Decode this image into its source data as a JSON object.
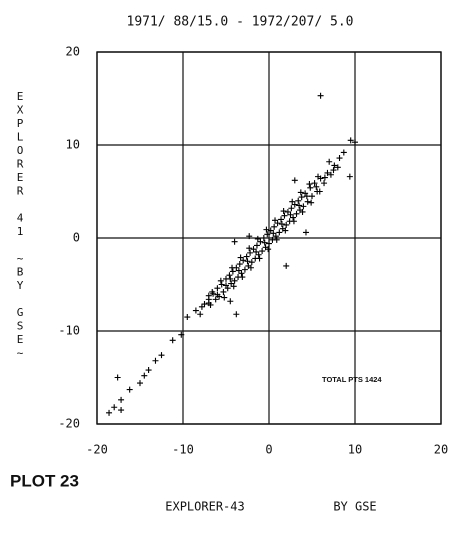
{
  "chart_data": {
    "type": "scatter",
    "title": "1971/ 88/15.0 - 1972/207/ 5.0",
    "ylabel": "EXPLORER 41 ~BY GSE~",
    "xlabel": "EXPLORER-43",
    "xlabel_note": "BY GSE",
    "plot_label": "PLOT 23",
    "annotation": "TOTAL PTS 1424",
    "color": "#000000",
    "grid": true,
    "xlim": [
      -20,
      20
    ],
    "ylim": [
      -20,
      20
    ],
    "xticks": [
      -20,
      -10,
      0,
      10,
      20
    ],
    "yticks": [
      -20,
      -10,
      0,
      10,
      20
    ],
    "x": [
      -8,
      -7.5,
      -7.8,
      -7,
      -6.8,
      -6.5,
      -6.2,
      -6,
      -5.8,
      -5.5,
      -5.3,
      -5,
      -4.8,
      -4.6,
      -4.4,
      -4.2,
      -4,
      -3.8,
      -3.6,
      -3.4,
      -3.2,
      -3,
      -2.8,
      -2.6,
      -2.4,
      -2.2,
      -2,
      -1.8,
      -1.6,
      -1.4,
      -1.2,
      -1,
      -0.8,
      -0.6,
      -0.4,
      -0.2,
      0,
      0.2,
      0.4,
      0.6,
      0.8,
      1,
      1.2,
      1.4,
      1.6,
      1.8,
      2,
      2.2,
      2.4,
      2.6,
      2.8,
      3,
      3.2,
      3.4,
      3.6,
      3.8,
      4,
      4.2,
      4.5,
      4.8,
      5,
      5.3,
      5.6,
      6,
      6.4,
      6.8,
      7.2,
      7.6,
      8,
      -7,
      -6,
      -5,
      -4.5,
      -3.5,
      -2.5,
      -1.5,
      -0.5,
      0.5,
      1.5,
      2.5,
      3.5,
      4.4,
      5.5,
      6.5,
      7.5,
      -6.6,
      -5.6,
      -4.3,
      -3.3,
      -2.3,
      -1.3,
      -0.3,
      0.7,
      1.7,
      2.7,
      3.7,
      4.7,
      5.7,
      -5.2,
      -4.1,
      -3.1,
      -2.1,
      -1.1,
      -0.1,
      0.9,
      1.9,
      2.9,
      3.9,
      4.9,
      5.9,
      6,
      9.5,
      10,
      8.7,
      8.2,
      7,
      -4,
      -2.3,
      -3.8,
      -4.5,
      -7,
      -8.5,
      -9.5,
      -10.2,
      -11.2,
      -12.5,
      -13.2,
      -14,
      -14.5,
      -15,
      -16.2,
      -17.2,
      -17.6,
      -18,
      -18.6,
      -17.2,
      2,
      4.3,
      9.4,
      3
    ],
    "y": [
      -8.2,
      -7.1,
      -7.4,
      -6.6,
      -7.2,
      -6,
      -6.6,
      -5.4,
      -6.3,
      -5,
      -5.8,
      -4.4,
      -5.4,
      -4,
      -4.9,
      -3.6,
      -4.6,
      -3.2,
      -4.2,
      -2.8,
      -3.8,
      -2.4,
      -3.4,
      -2,
      -3,
      -1.6,
      -2.6,
      -1.2,
      -2.2,
      -0.8,
      -1.8,
      -0.4,
      -1.4,
      0,
      -1,
      0.4,
      -0.6,
      0.8,
      -0.2,
      1.2,
      0.2,
      1.6,
      0.6,
      2,
      1,
      2.4,
      1.4,
      2.8,
      1.8,
      3.2,
      2.2,
      3.6,
      2.6,
      4,
      3,
      4.4,
      3.4,
      4.8,
      3.9,
      5.4,
      4.5,
      5.9,
      5,
      6.4,
      5.9,
      7,
      6.8,
      7.8,
      7.6,
      -7,
      -6.1,
      -5.1,
      -4.4,
      -3.5,
      -2.5,
      -1.5,
      -0.5,
      0.5,
      1.5,
      2.5,
      3.5,
      4.5,
      5.5,
      6.5,
      7.3,
      -5.8,
      -4.6,
      -3.2,
      -2.1,
      -1.1,
      -0.1,
      0.9,
      1.9,
      2.9,
      3.9,
      4.9,
      5.8,
      6.6,
      -6.4,
      -5.2,
      -4.2,
      -3.2,
      -2.2,
      -1.2,
      -0.2,
      0.8,
      1.8,
      2.8,
      3.8,
      5,
      15.3,
      10.5,
      10.3,
      9.2,
      8.6,
      8.2,
      -0.4,
      0.2,
      -8.2,
      -6.8,
      -6.2,
      -7.8,
      -8.5,
      -10.4,
      -11,
      -12.6,
      -13.2,
      -14.2,
      -14.8,
      -15.6,
      -16.3,
      -17.4,
      -15,
      -18.2,
      -18.8,
      -18.5,
      -3,
      0.6,
      6.6,
      6.2
    ]
  }
}
